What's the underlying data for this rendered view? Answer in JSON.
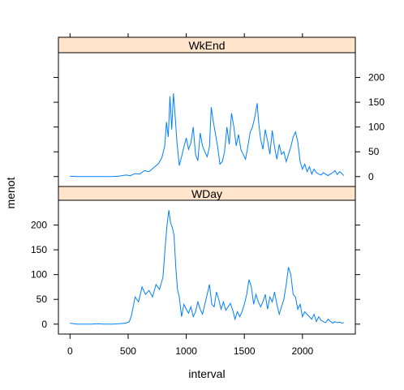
{
  "chart_data": {
    "type": "line",
    "layout": "lattice-two-panel-stacked",
    "xlabel": "interval",
    "ylabel": "menot",
    "xlim": [
      -100,
      2455
    ],
    "ylim": [
      -20,
      250
    ],
    "x_ticks": [
      0,
      500,
      1000,
      1500,
      2000
    ],
    "y_ticks": [
      0,
      50,
      100,
      150,
      200
    ],
    "grid": false,
    "legend": "none",
    "line_color": "#0080ff",
    "strip_color": "#ffe5cc",
    "panels": [
      {
        "label": "WkEnd",
        "y_axis_side": "right",
        "series": [
          {
            "x": [
              0,
              60,
              120,
              180,
              240,
              300,
              360,
              420,
              480,
              520,
              560,
              600,
              640,
              680,
              720,
              760,
              790,
              815,
              830,
              845,
              860,
              875,
              890,
              905,
              920,
              940,
              960,
              980,
              1000,
              1020,
              1040,
              1060,
              1080,
              1100,
              1120,
              1140,
              1160,
              1180,
              1200,
              1215,
              1230,
              1250,
              1270,
              1290,
              1310,
              1330,
              1350,
              1370,
              1390,
              1410,
              1430,
              1450,
              1470,
              1490,
              1510,
              1530,
              1550,
              1570,
              1590,
              1610,
              1625,
              1640,
              1660,
              1680,
              1700,
              1720,
              1740,
              1760,
              1780,
              1800,
              1820,
              1840,
              1860,
              1880,
              1900,
              1920,
              1940,
              1960,
              1980,
              2000,
              2020,
              2040,
              2060,
              2080,
              2100,
              2120,
              2140,
              2160,
              2180,
              2200,
              2220,
              2240,
              2260,
              2280,
              2300,
              2320,
              2340,
              2355
            ],
            "y": [
              1,
              0,
              0,
              0,
              0,
              0,
              0,
              1,
              3,
              2,
              6,
              5,
              12,
              10,
              18,
              26,
              38,
              62,
              110,
              80,
              162,
              95,
              168,
              120,
              70,
              22,
              40,
              60,
              78,
              55,
              68,
              100,
              45,
              32,
              88,
              62,
              50,
              40,
              60,
              140,
              115,
              88,
              60,
              25,
              30,
              50,
              100,
              65,
              128,
              100,
              62,
              85,
              55,
              45,
              35,
              60,
              90,
              100,
              120,
              148,
              105,
              75,
              55,
              95,
              72,
              45,
              93,
              60,
              35,
              65,
              45,
              50,
              30,
              45,
              60,
              80,
              90,
              70,
              30,
              15,
              25,
              10,
              20,
              5,
              15,
              8,
              5,
              3,
              8,
              5,
              2,
              5,
              8,
              12,
              4,
              10,
              6,
              2
            ]
          }
        ]
      },
      {
        "label": "WDay",
        "y_axis_side": "left",
        "series": [
          {
            "x": [
              0,
              60,
              120,
              180,
              240,
              300,
              360,
              420,
              480,
              510,
              530,
              560,
              590,
              620,
              650,
              680,
              710,
              740,
              770,
              800,
              820,
              835,
              850,
              865,
              880,
              895,
              910,
              925,
              940,
              960,
              980,
              1000,
              1020,
              1040,
              1060,
              1080,
              1100,
              1120,
              1140,
              1160,
              1180,
              1200,
              1220,
              1240,
              1260,
              1280,
              1300,
              1320,
              1340,
              1360,
              1380,
              1400,
              1420,
              1440,
              1460,
              1480,
              1500,
              1520,
              1540,
              1560,
              1580,
              1600,
              1620,
              1640,
              1660,
              1680,
              1700,
              1720,
              1740,
              1760,
              1780,
              1800,
              1820,
              1840,
              1860,
              1880,
              1900,
              1920,
              1940,
              1960,
              1980,
              2000,
              2020,
              2040,
              2060,
              2080,
              2100,
              2120,
              2140,
              2160,
              2180,
              2200,
              2220,
              2240,
              2260,
              2280,
              2300,
              2320,
              2340,
              2355
            ],
            "y": [
              2,
              0,
              0,
              0,
              1,
              0,
              0,
              1,
              2,
              5,
              18,
              55,
              45,
              75,
              60,
              68,
              55,
              80,
              70,
              95,
              160,
              200,
              230,
              205,
              195,
              180,
              115,
              70,
              55,
              15,
              40,
              30,
              22,
              35,
              15,
              25,
              45,
              30,
              20,
              40,
              60,
              80,
              40,
              35,
              65,
              50,
              30,
              45,
              28,
              35,
              42,
              28,
              10,
              25,
              15,
              25,
              40,
              60,
              90,
              75,
              40,
              60,
              45,
              35,
              45,
              60,
              30,
              55,
              45,
              65,
              40,
              20,
              35,
              50,
              80,
              115,
              100,
              60,
              55,
              30,
              40,
              15,
              25,
              20,
              15,
              10,
              20,
              5,
              15,
              8,
              5,
              3,
              10,
              6,
              2,
              5,
              3,
              4,
              2,
              3
            ]
          }
        ]
      }
    ]
  }
}
